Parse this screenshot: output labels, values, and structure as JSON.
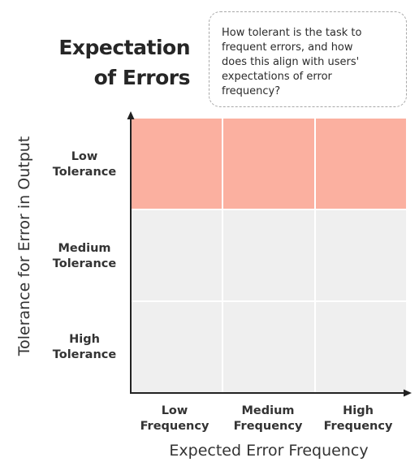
{
  "title": {
    "line1": "Expectation",
    "line2": "of Errors"
  },
  "note": {
    "lines": [
      "How tolerant is the task to",
      "frequent errors, and how",
      "does this align with users'",
      "expectations of error",
      "frequency?"
    ]
  },
  "matrix": {
    "highlight_color": "#fbb0a0",
    "cell_color": "#efefef",
    "rows": [
      {
        "line1": "Low",
        "line2": "Tolerance",
        "highlighted": true
      },
      {
        "line1": "Medium",
        "line2": "Tolerance",
        "highlighted": false
      },
      {
        "line1": "High",
        "line2": "Tolerance",
        "highlighted": false
      }
    ],
    "columns": [
      {
        "line1": "Low",
        "line2": "Frequency"
      },
      {
        "line1": "Medium",
        "line2": "Frequency"
      },
      {
        "line1": "High",
        "line2": "Frequency"
      }
    ]
  },
  "axes": {
    "x_title": "Expected Error Frequency",
    "y_title": "Tolerance for Error in Output"
  }
}
